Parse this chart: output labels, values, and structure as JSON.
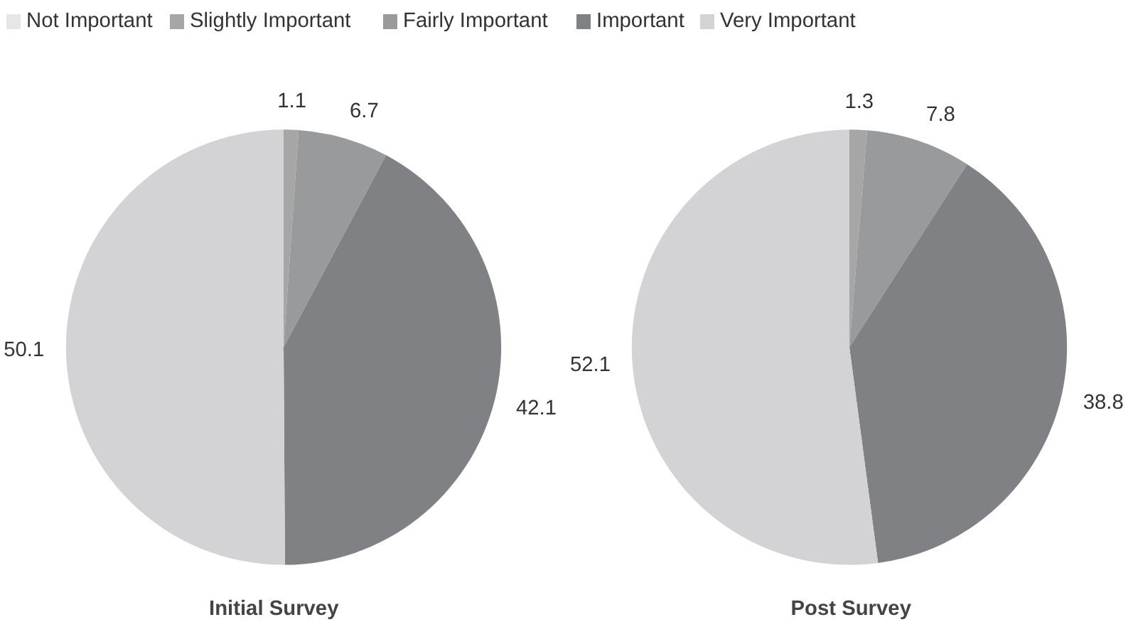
{
  "chart_data": [
    {
      "type": "pie",
      "title": "Initial Survey",
      "categories": [
        "Not Important",
        "Slightly Important",
        "Fairly Important",
        "Important",
        "Very Important"
      ],
      "values": [
        0,
        1.1,
        6.7,
        42.1,
        50.1
      ],
      "value_labels": [
        null,
        "1.1",
        "6.7",
        "42.1",
        "50.1"
      ],
      "colors": [
        "#e6e6e6",
        "#a6a6a6",
        "#999a9c",
        "#808184",
        "#d3d3d5"
      ],
      "legend": "top"
    },
    {
      "type": "pie",
      "title": "Post Survey",
      "categories": [
        null,
        null,
        null,
        null,
        null
      ],
      "values": [
        0,
        1.3,
        7.8,
        38.8,
        52.1
      ],
      "value_labels": [
        null,
        "1.3",
        "7.8",
        "38.8",
        "52.1"
      ],
      "colors": [
        "#e6e6e6",
        "#a6a6a6",
        "#999a9c",
        "#808184",
        "#d3d3d5"
      ]
    }
  ]
}
